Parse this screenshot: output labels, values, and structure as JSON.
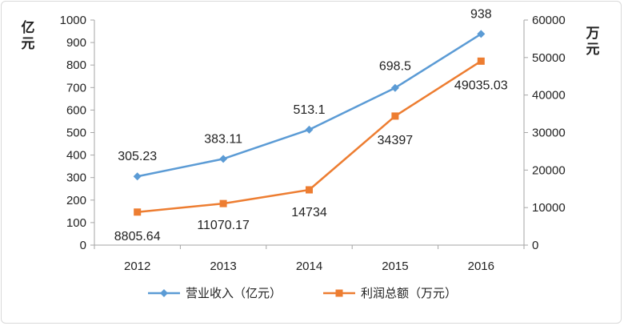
{
  "chart_data": {
    "type": "line",
    "categories": [
      "2012",
      "2013",
      "2014",
      "2015",
      "2016"
    ],
    "y_left": {
      "label": "亿元",
      "ylim": [
        0,
        1000
      ],
      "ticks": [
        0,
        100,
        200,
        300,
        400,
        500,
        600,
        700,
        800,
        900,
        1000
      ]
    },
    "y_right": {
      "label": "万元",
      "ylim": [
        0,
        60000
      ],
      "ticks": [
        0,
        10000,
        20000,
        30000,
        40000,
        50000,
        60000
      ]
    },
    "grid": false,
    "legend_position": "bottom",
    "series": [
      {
        "name": "营业收入（亿元）",
        "axis": "left",
        "marker": "diamond",
        "color": "#5b9bd5",
        "values": [
          305.23,
          383.11,
          513.1,
          698.5,
          938
        ],
        "labels": [
          "305.23",
          "383.11",
          "513.1",
          "698.5",
          "938"
        ]
      },
      {
        "name": "利润总额（万元）",
        "axis": "right",
        "marker": "square",
        "color": "#ed7d31",
        "values": [
          8805.64,
          11070.17,
          14734,
          34397,
          49035.03
        ],
        "labels": [
          "8805.64",
          "11070.17",
          "14734",
          "34397",
          "49035.03"
        ]
      }
    ]
  }
}
